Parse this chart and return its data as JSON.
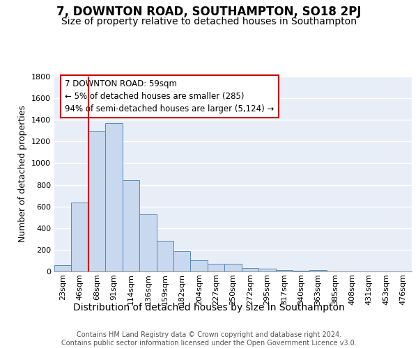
{
  "title1": "7, DOWNTON ROAD, SOUTHAMPTON, SO18 2PJ",
  "title2": "Size of property relative to detached houses in Southampton",
  "xlabel": "Distribution of detached houses by size in Southampton",
  "ylabel": "Number of detached properties",
  "categories": [
    "23sqm",
    "46sqm",
    "68sqm",
    "91sqm",
    "114sqm",
    "136sqm",
    "159sqm",
    "182sqm",
    "204sqm",
    "227sqm",
    "250sqm",
    "272sqm",
    "295sqm",
    "317sqm",
    "340sqm",
    "363sqm",
    "385sqm",
    "408sqm",
    "431sqm",
    "453sqm",
    "476sqm"
  ],
  "values": [
    60,
    635,
    1300,
    1370,
    845,
    525,
    280,
    185,
    105,
    70,
    70,
    35,
    28,
    15,
    5,
    15,
    0,
    0,
    0,
    0,
    0
  ],
  "bar_color": "#c8d8ee",
  "bar_edge_color": "#5588bb",
  "background_color": "#e8eef8",
  "annotation_box_text": "7 DOWNTON ROAD: 59sqm\n← 5% of detached houses are smaller (285)\n94% of semi-detached houses are larger (5,124) →",
  "annotation_box_color": "#ffffff",
  "annotation_box_edge": "#cc0000",
  "vline_x_index": 2,
  "vline_color": "#cc0000",
  "ylim": [
    0,
    1800
  ],
  "yticks": [
    0,
    200,
    400,
    600,
    800,
    1000,
    1200,
    1400,
    1600,
    1800
  ],
  "footer": "Contains HM Land Registry data © Crown copyright and database right 2024.\nContains public sector information licensed under the Open Government Licence v3.0.",
  "title1_fontsize": 12,
  "title2_fontsize": 10,
  "xlabel_fontsize": 10,
  "ylabel_fontsize": 9,
  "tick_fontsize": 8,
  "footer_fontsize": 7
}
